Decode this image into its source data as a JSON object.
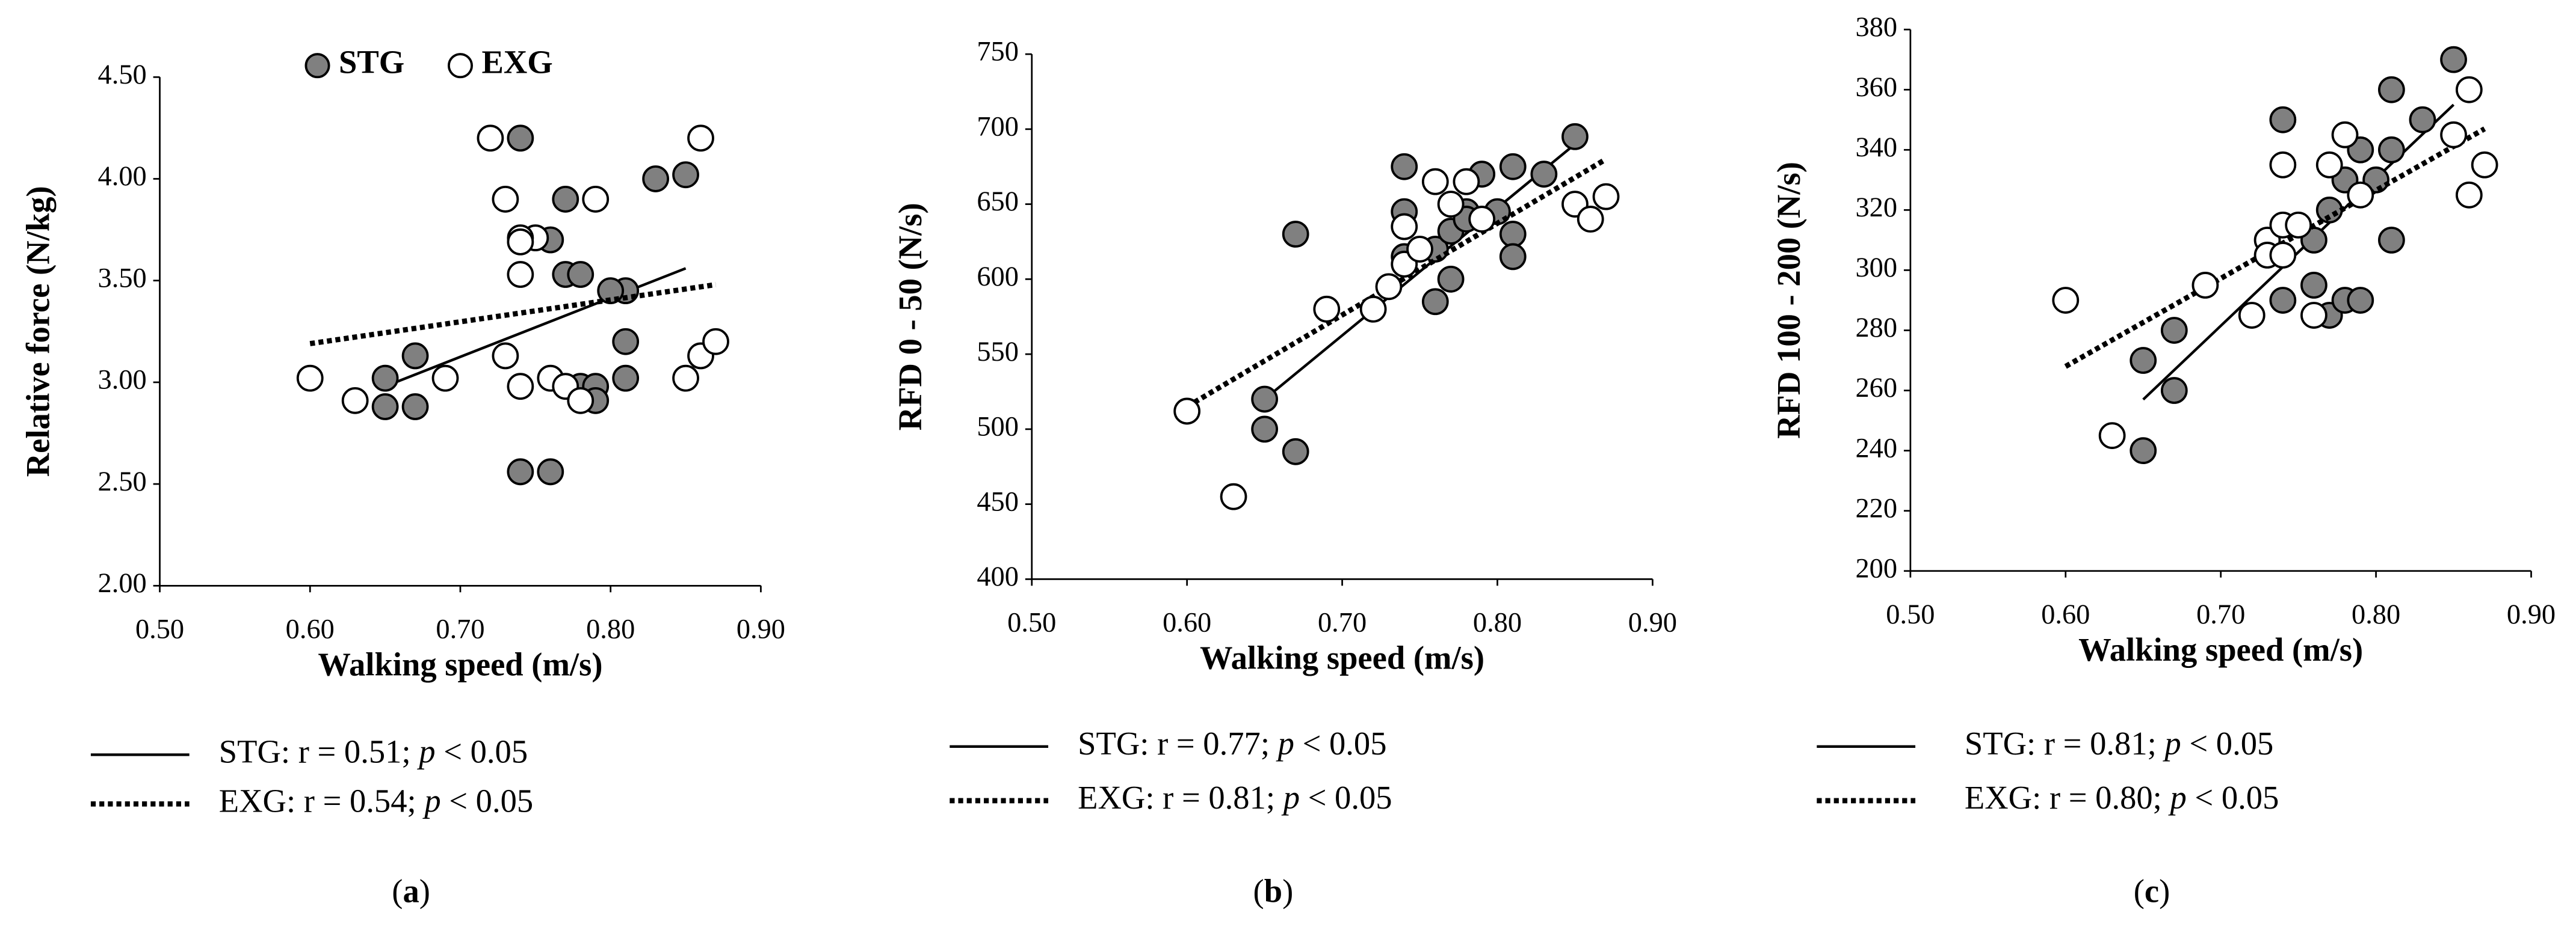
{
  "chart_data": [
    {
      "type": "scatter",
      "label": [
        "(",
        "a",
        ")"
      ],
      "legend": "top",
      "xlabel": "Walking speed (m/s)",
      "ylabel": "Relative force (N/kg)",
      "xlim": [
        0.5,
        0.9
      ],
      "xticks": [
        {
          "value": 0.5,
          "label": "0.50"
        },
        {
          "value": 0.6,
          "label": "0.60"
        },
        {
          "value": 0.7,
          "label": "0.70"
        },
        {
          "value": 0.8,
          "label": "0.80"
        },
        {
          "value": 0.9,
          "label": "0.90"
        }
      ],
      "ylim": [
        2,
        4.5
      ],
      "yticks": [
        {
          "value": 2,
          "label": "2.00"
        },
        {
          "value": 2.5,
          "label": "2.50"
        },
        {
          "value": 3,
          "label": "3.00"
        },
        {
          "value": 3.5,
          "label": "3.50"
        },
        {
          "value": 4,
          "label": "4.00"
        },
        {
          "value": 4.5,
          "label": "4.50"
        }
      ],
      "series": [
        {
          "name": "STG",
          "color": "#808080",
          "line_style": "solid",
          "r_label": [
            ": r = 0.51; ",
            "p",
            " < 0.05"
          ],
          "x": [
            0.74,
            0.83,
            0.85,
            0.77,
            0.76,
            0.77,
            0.78,
            0.81,
            0.8,
            0.81,
            0.67,
            0.65,
            0.65,
            0.67,
            0.78,
            0.79,
            0.79,
            0.81,
            0.74,
            0.76
          ],
          "y": [
            4.2,
            4.0,
            4.02,
            3.9,
            3.7,
            3.53,
            3.53,
            3.45,
            3.45,
            3.2,
            3.13,
            3.02,
            2.88,
            2.88,
            2.98,
            2.98,
            2.91,
            3.02,
            2.56,
            2.56
          ],
          "trend": {
            "x": [
              0.65,
              0.85
            ],
            "y": [
              2.98,
              3.56
            ]
          }
        },
        {
          "name": "EXG",
          "color": "#ffffff",
          "line_style": "dotted",
          "r_label": [
            ": r = 0.54; ",
            "p",
            " < 0.05"
          ],
          "x": [
            0.72,
            0.86,
            0.73,
            0.79,
            0.75,
            0.74,
            0.74,
            0.74,
            0.73,
            0.6,
            0.63,
            0.69,
            0.74,
            0.76,
            0.77,
            0.78,
            0.85,
            0.86,
            0.87
          ],
          "y": [
            4.2,
            4.2,
            3.9,
            3.9,
            3.71,
            3.71,
            3.69,
            3.53,
            3.13,
            3.02,
            2.91,
            3.02,
            2.98,
            3.02,
            2.98,
            2.91,
            3.02,
            3.13,
            3.2
          ],
          "trend": {
            "x": [
              0.6,
              0.87
            ],
            "y": [
              3.19,
              3.48
            ]
          }
        }
      ]
    },
    {
      "type": "scatter",
      "label": [
        "(",
        "b",
        ")"
      ],
      "xlabel": "Walking speed (m/s)",
      "ylabel": "RFD 0 - 50 (N/s)",
      "xlim": [
        0.5,
        0.9
      ],
      "xticks": [
        {
          "value": 0.5,
          "label": "0.50"
        },
        {
          "value": 0.6,
          "label": "0.60"
        },
        {
          "value": 0.7,
          "label": "0.70"
        },
        {
          "value": 0.8,
          "label": "0.80"
        },
        {
          "value": 0.9,
          "label": "0.90"
        }
      ],
      "ylim": [
        400,
        750
      ],
      "yticks": [
        400,
        450,
        500,
        550,
        600,
        650,
        700,
        750
      ],
      "series": [
        {
          "name": "STG",
          "color": "#808080",
          "line_style": "solid",
          "r_label": [
            ": r = 0.77; ",
            "p",
            " < 0.05"
          ],
          "x": [
            0.67,
            0.74,
            0.74,
            0.74,
            0.76,
            0.76,
            0.77,
            0.77,
            0.78,
            0.79,
            0.8,
            0.81,
            0.81,
            0.81,
            0.83,
            0.85,
            0.65,
            0.65,
            0.67,
            0.78
          ],
          "y": [
            630,
            675,
            645,
            615,
            585,
            620,
            600,
            632,
            645,
            670,
            645,
            675,
            630,
            615,
            670,
            695,
            520,
            500,
            485,
            640
          ],
          "trend": {
            "x": [
              0.65,
              0.85
            ],
            "y": [
              520,
              690
            ]
          }
        },
        {
          "name": "EXG",
          "color": "#ffffff",
          "line_style": "dotted",
          "r_label": [
            ": r = 0.81; ",
            "p",
            " < 0.05"
          ],
          "x": [
            0.6,
            0.63,
            0.69,
            0.72,
            0.73,
            0.74,
            0.74,
            0.75,
            0.76,
            0.77,
            0.78,
            0.79,
            0.85,
            0.86,
            0.87
          ],
          "y": [
            512,
            455,
            580,
            580,
            595,
            610,
            635,
            620,
            665,
            650,
            665,
            640,
            650,
            640,
            655
          ],
          "trend": {
            "x": [
              0.6,
              0.87
            ],
            "y": [
              515,
              680
            ]
          }
        }
      ]
    },
    {
      "type": "scatter",
      "label": [
        "(",
        "c",
        ")"
      ],
      "xlabel": "Walking speed (m/s)",
      "ylabel": "RFD 100 - 200 (N/s)",
      "xlim": [
        0.5,
        0.9
      ],
      "xticks": [
        {
          "value": 0.5,
          "label": "0.50"
        },
        {
          "value": 0.6,
          "label": "0.60"
        },
        {
          "value": 0.7,
          "label": "0.70"
        },
        {
          "value": 0.8,
          "label": "0.80"
        },
        {
          "value": 0.9,
          "label": "0.90"
        }
      ],
      "ylim": [
        200,
        380
      ],
      "yticks": [
        200,
        220,
        240,
        260,
        280,
        300,
        320,
        340,
        360,
        380
      ],
      "series": [
        {
          "name": "STG",
          "color": "#808080",
          "line_style": "solid",
          "r_label": [
            ": r = 0.81; ",
            "p",
            " < 0.05"
          ],
          "x": [
            0.85,
            0.81,
            0.83,
            0.74,
            0.79,
            0.81,
            0.8,
            0.78,
            0.77,
            0.76,
            0.81,
            0.74,
            0.76,
            0.77,
            0.78,
            0.79,
            0.65,
            0.67,
            0.67,
            0.65
          ],
          "y": [
            370,
            360,
            350,
            350,
            340,
            340,
            330,
            330,
            320,
            310,
            310,
            290,
            295,
            285,
            290,
            290,
            270,
            280,
            260,
            240
          ],
          "trend": {
            "x": [
              0.65,
              0.85
            ],
            "y": [
              257,
              355
            ]
          }
        },
        {
          "name": "EXG",
          "color": "#ffffff",
          "line_style": "dotted",
          "r_label": [
            ": r = 0.80; ",
            "p",
            " < 0.05"
          ],
          "x": [
            0.6,
            0.63,
            0.69,
            0.72,
            0.73,
            0.73,
            0.74,
            0.74,
            0.74,
            0.75,
            0.76,
            0.77,
            0.78,
            0.79,
            0.85,
            0.86,
            0.86,
            0.87
          ],
          "y": [
            290,
            245,
            295,
            285,
            310,
            305,
            315,
            305,
            335,
            315,
            285,
            335,
            345,
            325,
            345,
            360,
            325,
            335
          ],
          "trend": {
            "x": [
              0.6,
              0.87
            ],
            "y": [
              268,
              347
            ]
          }
        }
      ]
    }
  ]
}
